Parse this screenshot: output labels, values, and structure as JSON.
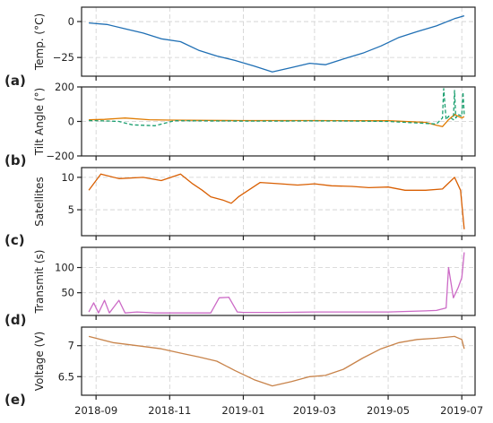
{
  "figure": {
    "panel_letters": [
      "(a)",
      "(b)",
      "(c)",
      "(d)",
      "(e)"
    ],
    "x_tick_labels": [
      "2018-09",
      "2018-11",
      "2019-01",
      "2019-03",
      "2019-05",
      "2019-07"
    ]
  },
  "chart_data": [
    {
      "type": "line",
      "ylabel": "Temp. (°C)",
      "ylim": [
        -38,
        10
      ],
      "y_ticks": [
        0,
        -25
      ],
      "x_range": [
        "2018-08-20",
        "2019-07-12"
      ],
      "grid": true,
      "series": [
        {
          "color": "#1f6fb4",
          "x": [
            "2018-08-26",
            "2018-09-10",
            "2018-09-25",
            "2018-10-10",
            "2018-10-25",
            "2018-11-10",
            "2018-11-25",
            "2018-12-10",
            "2018-12-25",
            "2019-01-10",
            "2019-01-25",
            "2019-02-10",
            "2019-02-25",
            "2019-03-10",
            "2019-03-25",
            "2019-04-10",
            "2019-04-25",
            "2019-05-10",
            "2019-05-25",
            "2019-06-10",
            "2019-06-25",
            "2019-07-03"
          ],
          "y": [
            -1,
            -2,
            -5,
            -8,
            -12,
            -14,
            -20,
            -24,
            -27,
            -31,
            -35,
            -32,
            -29,
            -30,
            -26,
            -22,
            -17,
            -11,
            -7,
            -3,
            2,
            4
          ]
        }
      ]
    },
    {
      "type": "line",
      "ylabel": "Tilt Angle (°)",
      "ylim": [
        -200,
        200
      ],
      "y_ticks": [
        200,
        0,
        -200
      ],
      "x_range": [
        "2018-08-20",
        "2019-07-12"
      ],
      "grid": true,
      "series": [
        {
          "color": "#e07b00",
          "x": [
            "2018-08-26",
            "2018-09-08",
            "2018-09-25",
            "2018-10-15",
            "2018-11-01",
            "2018-12-01",
            "2019-01-01",
            "2019-02-01",
            "2019-03-01",
            "2019-04-01",
            "2019-05-01",
            "2019-06-01",
            "2019-06-10",
            "2019-06-15",
            "2019-06-20",
            "2019-06-25",
            "2019-07-01",
            "2019-07-03"
          ],
          "y": [
            10,
            12,
            20,
            10,
            8,
            6,
            5,
            5,
            5,
            4,
            4,
            -5,
            -22,
            -30,
            10,
            40,
            20,
            28
          ]
        },
        {
          "color": "#1a9f6f",
          "dashed": true,
          "x": [
            "2018-08-26",
            "2018-09-08",
            "2018-09-20",
            "2018-10-01",
            "2018-10-20",
            "2018-11-05",
            "2018-12-01",
            "2019-01-01",
            "2019-02-01",
            "2019-03-01",
            "2019-04-01",
            "2019-05-01",
            "2019-05-28",
            "2019-06-10",
            "2019-06-15",
            "2019-06-16",
            "2019-06-18",
            "2019-06-20",
            "2019-06-24",
            "2019-06-25",
            "2019-06-26",
            "2019-06-28",
            "2019-07-01",
            "2019-07-02",
            "2019-07-03"
          ],
          "y": [
            5,
            3,
            0,
            -20,
            -25,
            4,
            3,
            2,
            2,
            3,
            2,
            0,
            -10,
            -15,
            20,
            190,
            10,
            30,
            10,
            180,
            20,
            40,
            30,
            170,
            40
          ]
        }
      ]
    },
    {
      "type": "line",
      "ylabel": "Satellites",
      "ylim": [
        1,
        11.5
      ],
      "y_ticks": [
        10,
        5
      ],
      "x_range": [
        "2018-08-20",
        "2019-07-12"
      ],
      "grid": true,
      "series": [
        {
          "color": "#d95f02",
          "x": [
            "2018-08-26",
            "2018-09-05",
            "2018-09-20",
            "2018-10-10",
            "2018-10-25",
            "2018-11-10",
            "2018-11-20",
            "2018-11-28",
            "2018-12-05",
            "2018-12-15",
            "2018-12-22",
            "2018-12-28",
            "2019-01-15",
            "2019-02-01",
            "2019-02-15",
            "2019-03-01",
            "2019-03-15",
            "2019-04-01",
            "2019-04-15",
            "2019-05-01",
            "2019-05-15",
            "2019-06-01",
            "2019-06-15",
            "2019-06-25",
            "2019-06-30",
            "2019-07-03"
          ],
          "y": [
            8,
            10.5,
            9.8,
            10,
            9.5,
            10.5,
            9,
            8,
            7,
            6.5,
            6,
            7,
            9.2,
            9,
            8.8,
            9,
            8.7,
            8.6,
            8.4,
            8.5,
            8,
            8,
            8.2,
            10,
            8,
            2
          ]
        }
      ]
    },
    {
      "type": "line",
      "ylabel": "Transmit (s)",
      "ylim": [
        5,
        140
      ],
      "y_ticks": [
        100,
        50
      ],
      "x_range": [
        "2018-08-20",
        "2019-07-12"
      ],
      "grid": true,
      "series": [
        {
          "color": "#cc6ac6",
          "x": [
            "2018-08-26",
            "2018-08-30",
            "2018-09-03",
            "2018-09-08",
            "2018-09-12",
            "2018-09-20",
            "2018-09-25",
            "2018-10-05",
            "2018-10-20",
            "2018-11-01",
            "2018-11-20",
            "2018-12-05",
            "2018-12-12",
            "2018-12-20",
            "2018-12-27",
            "2019-01-01",
            "2019-02-01",
            "2019-03-01",
            "2019-04-01",
            "2019-05-01",
            "2019-06-01",
            "2019-06-10",
            "2019-06-18",
            "2019-06-20",
            "2019-06-24",
            "2019-06-28",
            "2019-07-01",
            "2019-07-03"
          ],
          "y": [
            12,
            30,
            10,
            35,
            10,
            35,
            10,
            12,
            10,
            10,
            10,
            10,
            40,
            41,
            12,
            11,
            11,
            12,
            12,
            12,
            14,
            15,
            20,
            100,
            40,
            60,
            80,
            130
          ]
        }
      ]
    },
    {
      "type": "line",
      "ylabel": "Voltage (V)",
      "ylim": [
        6.2,
        7.3
      ],
      "y_ticks": [
        7.0,
        6.5
      ],
      "x_range": [
        "2018-08-20",
        "2019-07-12"
      ],
      "grid": true,
      "series": [
        {
          "color": "#c8834a",
          "x": [
            "2018-08-26",
            "2018-09-15",
            "2018-10-05",
            "2018-10-25",
            "2018-11-10",
            "2018-11-25",
            "2018-12-10",
            "2018-12-25",
            "2019-01-10",
            "2019-01-25",
            "2019-02-10",
            "2019-02-25",
            "2019-03-10",
            "2019-03-25",
            "2019-04-10",
            "2019-04-25",
            "2019-05-10",
            "2019-05-25",
            "2019-06-10",
            "2019-06-25",
            "2019-07-01",
            "2019-07-03"
          ],
          "y": [
            7.15,
            7.05,
            7.0,
            6.95,
            6.88,
            6.82,
            6.75,
            6.6,
            6.45,
            6.35,
            6.42,
            6.5,
            6.52,
            6.62,
            6.8,
            6.95,
            7.05,
            7.1,
            7.12,
            7.15,
            7.1,
            6.95
          ]
        }
      ]
    }
  ]
}
